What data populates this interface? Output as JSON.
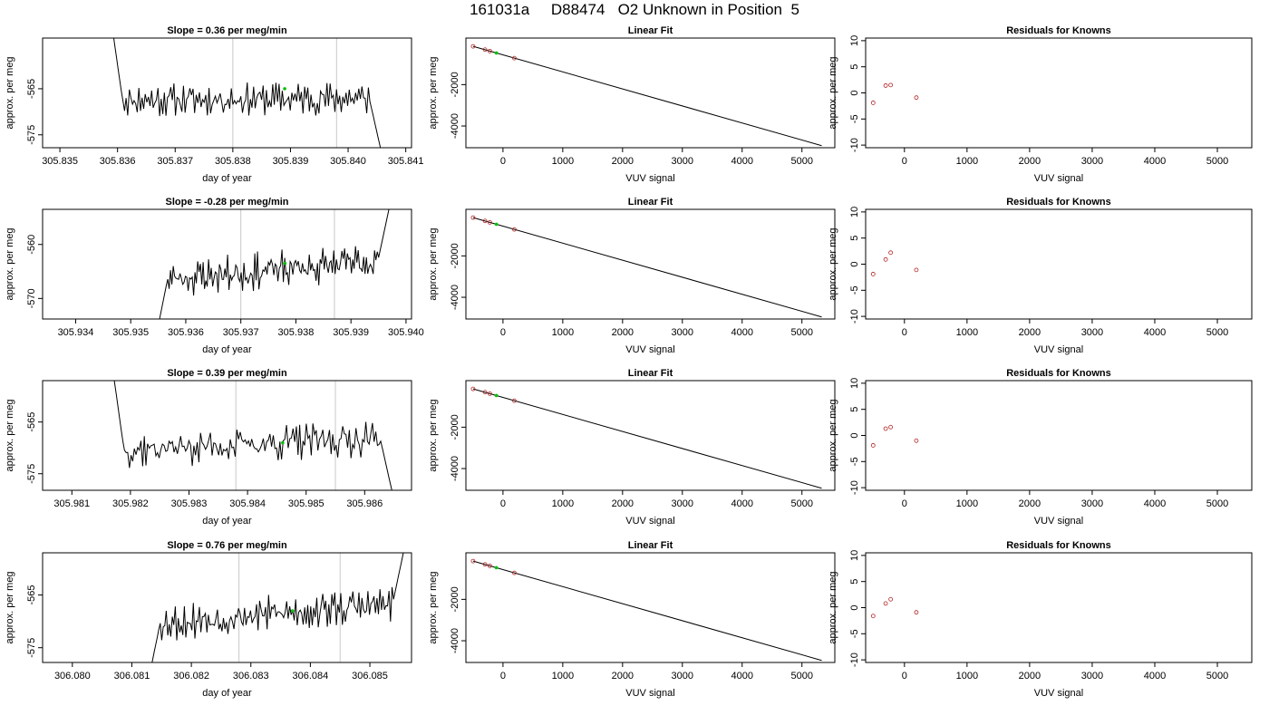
{
  "figure": {
    "title": "161031a     D88474   O2 Unknown in Position  5"
  },
  "rows": [
    {
      "timeseries": {
        "title": "Slope =  0.36  per meg/min",
        "xlabel": "day of year",
        "ylabel": "approx. per meg",
        "xlim": [
          305.8347,
          305.8411
        ],
        "ylim": [
          -577.8,
          -554.0
        ],
        "xticks": [
          305.835,
          305.836,
          305.837,
          305.838,
          305.839,
          305.84,
          305.841
        ],
        "xtick_labels": [
          "305.835",
          "305.836",
          "305.837",
          "305.838",
          "305.839",
          "305.840",
          "305.841"
        ],
        "yticks": [
          -565,
          -575
        ],
        "ytick_labels": [
          "-565",
          "-575"
        ],
        "vlines": [
          305.838,
          305.8398
        ],
        "start": 305.8359,
        "end": 305.8406,
        "start_level": -551,
        "end_level": -580,
        "base_level": -567.5,
        "trend": 0.5,
        "seed": 11,
        "marker": {
          "x": 305.8389,
          "y": -565
        }
      },
      "linear_fit": {
        "title": "Linear Fit",
        "xlabel": "VUV signal",
        "ylabel": "approx. per meg",
        "xlim": [
          -620,
          5550
        ],
        "ylim": [
          -5050,
          250
        ],
        "xticks": [
          0,
          1000,
          2000,
          3000,
          4000,
          5000
        ],
        "yticks": [
          -2000,
          -4000
        ],
        "ytick_labels": [
          "-2000",
          "-4000"
        ],
        "line": {
          "x": [
            -500,
            5330
          ],
          "y": [
            -150,
            -4950
          ]
        },
        "knowns": {
          "x": [
            -500,
            -300,
            -220,
            190
          ],
          "y": [
            -150,
            -310,
            -380,
            -720
          ]
        },
        "unknown": {
          "x": -110,
          "y": -470
        }
      },
      "residuals": {
        "title": "Residuals for Knowns",
        "xlabel": "VUV signal",
        "xlim": [
          -620,
          5550
        ],
        "ylim": [
          -10.5,
          10.5
        ],
        "xticks": [
          0,
          1000,
          2000,
          3000,
          4000,
          5000
        ],
        "yticks": [
          10,
          5,
          0,
          -5,
          -10
        ],
        "points": {
          "x": [
            -500,
            -300,
            -220,
            190
          ],
          "y": [
            -1.9,
            1.4,
            1.5,
            -0.9
          ]
        }
      }
    },
    {
      "timeseries": {
        "title": "Slope =  -0.28  per meg/min",
        "xlabel": "day of year",
        "ylabel": "approx. per meg",
        "xlim": [
          305.9334,
          305.9401
        ],
        "ylim": [
          -573.8,
          -553.5
        ],
        "xticks": [
          305.934,
          305.935,
          305.936,
          305.937,
          305.938,
          305.939,
          305.94
        ],
        "xtick_labels": [
          "305.934",
          "305.935",
          "305.936",
          "305.937",
          "305.938",
          "305.939",
          "305.940"
        ],
        "yticks": [
          -560,
          -570
        ],
        "ytick_labels": [
          "-560",
          "-570"
        ],
        "vlines": [
          305.937,
          305.9387
        ],
        "start": 305.9355,
        "end": 305.9397,
        "start_level": -575,
        "end_level": -553,
        "base_level": -566.5,
        "trend": 3.5,
        "seed": 23,
        "marker": {
          "x": 305.9378,
          "y": -563.5
        }
      },
      "linear_fit": {
        "title": "Linear Fit",
        "xlabel": "VUV signal",
        "ylabel": "approx. per meg",
        "xlim": [
          -620,
          5550
        ],
        "ylim": [
          -5050,
          250
        ],
        "xticks": [
          0,
          1000,
          2000,
          3000,
          4000,
          5000
        ],
        "yticks": [
          -2000,
          -4000
        ],
        "ytick_labels": [
          "-2000",
          "-4000"
        ],
        "line": {
          "x": [
            -500,
            5330
          ],
          "y": [
            -150,
            -4950
          ]
        },
        "knowns": {
          "x": [
            -500,
            -300,
            -220,
            190
          ],
          "y": [
            -150,
            -310,
            -380,
            -720
          ]
        },
        "unknown": {
          "x": -110,
          "y": -470
        }
      },
      "residuals": {
        "title": "Residuals for Knowns",
        "xlabel": "VUV signal",
        "xlim": [
          -620,
          5550
        ],
        "ylim": [
          -10.5,
          10.5
        ],
        "xticks": [
          0,
          1000,
          2000,
          3000,
          4000,
          5000
        ],
        "yticks": [
          10,
          5,
          0,
          -5,
          -10
        ],
        "points": {
          "x": [
            -500,
            -300,
            -220,
            190
          ],
          "y": [
            -1.9,
            0.9,
            2.2,
            -1.1
          ]
        }
      }
    },
    {
      "timeseries": {
        "title": "Slope =  0.39  per meg/min",
        "xlabel": "day of year",
        "ylabel": "approx. per meg",
        "xlim": [
          305.9805,
          305.9868
        ],
        "ylim": [
          -578.2,
          -557.0
        ],
        "xticks": [
          305.981,
          305.982,
          305.983,
          305.984,
          305.985,
          305.986
        ],
        "xtick_labels": [
          "305.981",
          "305.982",
          "305.983",
          "305.984",
          "305.985",
          "305.986"
        ],
        "yticks": [
          -565,
          -575
        ],
        "ytick_labels": [
          "-565",
          "-575"
        ],
        "vlines": [
          305.9838,
          305.9855
        ],
        "start": 305.9817,
        "end": 305.9865,
        "start_level": -555,
        "end_level": -580,
        "base_level": -570.5,
        "trend": 2.5,
        "seed": 37,
        "marker": {
          "x": 305.9846,
          "y": -569
        }
      },
      "linear_fit": {
        "title": "Linear Fit",
        "xlabel": "VUV signal",
        "ylabel": "approx. per meg",
        "xlim": [
          -620,
          5550
        ],
        "ylim": [
          -5050,
          250
        ],
        "xticks": [
          0,
          1000,
          2000,
          3000,
          4000,
          5000
        ],
        "yticks": [
          -2000,
          -4000
        ],
        "ytick_labels": [
          "-2000",
          "-4000"
        ],
        "line": {
          "x": [
            -500,
            5330
          ],
          "y": [
            -150,
            -4950
          ]
        },
        "knowns": {
          "x": [
            -500,
            -300,
            -220,
            190
          ],
          "y": [
            -150,
            -310,
            -380,
            -720
          ]
        },
        "unknown": {
          "x": -110,
          "y": -470
        }
      },
      "residuals": {
        "title": "Residuals for Knowns",
        "xlabel": "VUV signal",
        "xlim": [
          -620,
          5550
        ],
        "ylim": [
          -10.5,
          10.5
        ],
        "xticks": [
          0,
          1000,
          2000,
          3000,
          4000,
          5000
        ],
        "yticks": [
          10,
          5,
          0,
          -5,
          -10
        ],
        "points": {
          "x": [
            -500,
            -300,
            -220,
            190
          ],
          "y": [
            -1.9,
            1.3,
            1.6,
            -1.0
          ]
        }
      }
    },
    {
      "timeseries": {
        "title": "Slope =  0.76  per meg/min",
        "xlabel": "day of year",
        "ylabel": "approx. per meg",
        "xlim": [
          306.0795,
          306.0857
        ],
        "ylim": [
          -577.8,
          -557.0
        ],
        "xticks": [
          306.08,
          306.081,
          306.082,
          306.083,
          306.084,
          306.085
        ],
        "xtick_labels": [
          "306.080",
          "306.081",
          "306.082",
          "306.083",
          "306.084",
          "306.085"
        ],
        "yticks": [
          -565,
          -575
        ],
        "ytick_labels": [
          "-565",
          "-575"
        ],
        "vlines": [
          306.0828,
          306.0845
        ],
        "start": 306.0813,
        "end": 306.0856,
        "start_level": -580,
        "end_level": -555,
        "base_level": -570.5,
        "trend": 4.0,
        "seed": 53,
        "marker": {
          "x": 306.0837,
          "y": -568
        }
      },
      "linear_fit": {
        "title": "Linear Fit",
        "xlabel": "VUV signal",
        "ylabel": "approx. per meg",
        "xlim": [
          -620,
          5550
        ],
        "ylim": [
          -5050,
          250
        ],
        "xticks": [
          0,
          1000,
          2000,
          3000,
          4000,
          5000
        ],
        "yticks": [
          -2000,
          -4000
        ],
        "ytick_labels": [
          "-2000",
          "-4000"
        ],
        "line": {
          "x": [
            -500,
            5330
          ],
          "y": [
            -150,
            -4950
          ]
        },
        "knowns": {
          "x": [
            -500,
            -300,
            -220,
            190
          ],
          "y": [
            -150,
            -310,
            -380,
            -720
          ]
        },
        "unknown": {
          "x": -110,
          "y": -470
        }
      },
      "residuals": {
        "title": "Residuals for Knowns",
        "xlabel": "VUV signal",
        "xlim": [
          -620,
          5550
        ],
        "ylim": [
          -10.5,
          10.5
        ],
        "xticks": [
          0,
          1000,
          2000,
          3000,
          4000,
          5000
        ],
        "yticks": [
          10,
          5,
          0,
          -5,
          -10
        ],
        "points": {
          "x": [
            -500,
            -300,
            -220,
            190
          ],
          "y": [
            -1.6,
            0.8,
            1.6,
            -0.9
          ]
        }
      }
    }
  ],
  "chart_data": [
    {
      "type": "line",
      "title": "Slope =  0.36  per meg/min",
      "xlabel": "day of year",
      "ylabel": "approx. per meg",
      "xlim": [
        305.8347,
        305.8411
      ],
      "ylim": [
        -577.8,
        -554.0
      ]
    },
    {
      "type": "scatter",
      "title": "Linear Fit",
      "xlabel": "VUV signal",
      "ylabel": "approx. per meg",
      "x": [
        -500,
        -300,
        -220,
        190
      ],
      "y": [
        -150,
        -310,
        -380,
        -720
      ]
    },
    {
      "type": "scatter",
      "title": "Residuals for Knowns",
      "xlabel": "VUV signal",
      "x": [
        -500,
        -300,
        -220,
        190
      ],
      "y": [
        -1.9,
        1.4,
        1.5,
        -0.9
      ]
    },
    {
      "type": "line",
      "title": "Slope =  -0.28  per meg/min",
      "xlabel": "day of year",
      "ylabel": "approx. per meg",
      "xlim": [
        305.9334,
        305.9401
      ],
      "ylim": [
        -573.8,
        -553.5
      ]
    },
    {
      "type": "scatter",
      "title": "Linear Fit",
      "xlabel": "VUV signal",
      "ylabel": "approx. per meg",
      "x": [
        -500,
        -300,
        -220,
        190
      ],
      "y": [
        -150,
        -310,
        -380,
        -720
      ]
    },
    {
      "type": "scatter",
      "title": "Residuals for Knowns",
      "xlabel": "VUV signal",
      "x": [
        -500,
        -300,
        -220,
        190
      ],
      "y": [
        -1.9,
        0.9,
        2.2,
        -1.1
      ]
    },
    {
      "type": "line",
      "title": "Slope =  0.39  per meg/min",
      "xlabel": "day of year",
      "ylabel": "approx. per meg",
      "xlim": [
        305.9805,
        305.9868
      ],
      "ylim": [
        -578.2,
        -557.0
      ]
    },
    {
      "type": "scatter",
      "title": "Linear Fit",
      "xlabel": "VUV signal",
      "ylabel": "approx. per meg",
      "x": [
        -500,
        -300,
        -220,
        190
      ],
      "y": [
        -150,
        -310,
        -380,
        -720
      ]
    },
    {
      "type": "scatter",
      "title": "Residuals for Knowns",
      "xlabel": "VUV signal",
      "x": [
        -500,
        -300,
        -220,
        190
      ],
      "y": [
        -1.9,
        1.3,
        1.6,
        -1.0
      ]
    },
    {
      "type": "line",
      "title": "Slope =  0.76  per meg/min",
      "xlabel": "day of year",
      "ylabel": "approx. per meg",
      "xlim": [
        306.0795,
        306.0857
      ],
      "ylim": [
        -577.8,
        -557.0
      ]
    },
    {
      "type": "scatter",
      "title": "Linear Fit",
      "xlabel": "VUV signal",
      "ylabel": "approx. per meg",
      "x": [
        -500,
        -300,
        -220,
        190
      ],
      "y": [
        -150,
        -310,
        -380,
        -720
      ]
    },
    {
      "type": "scatter",
      "title": "Residuals for Knowns",
      "xlabel": "VUV signal",
      "x": [
        -500,
        -300,
        -220,
        190
      ],
      "y": [
        -1.6,
        0.8,
        1.6,
        -0.9
      ]
    }
  ]
}
